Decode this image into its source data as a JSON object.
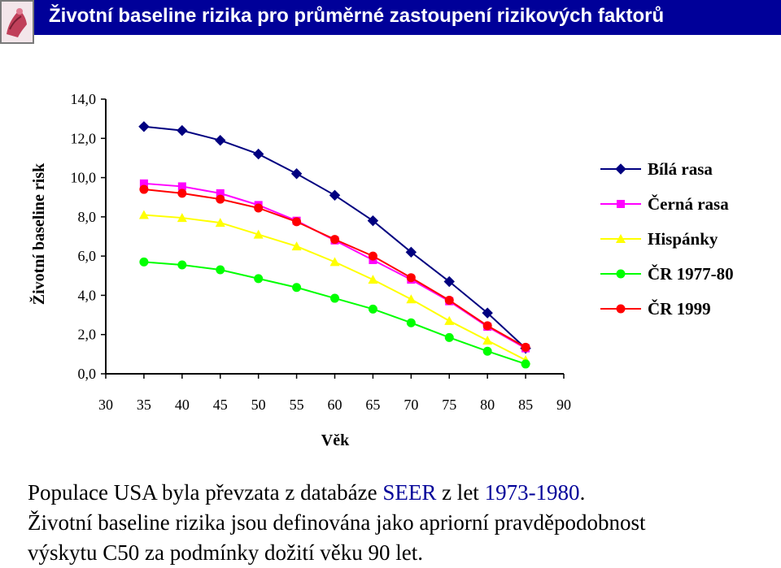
{
  "header": {
    "title": "Životní baseline rizika pro průměrné zastoupení rizikových faktorů"
  },
  "chart_data": {
    "type": "line",
    "xlabel": "Věk",
    "ylabel": "Životní baseline risk",
    "x_ticks": [
      "30",
      "35",
      "40",
      "45",
      "50",
      "55",
      "60",
      "65",
      "70",
      "75",
      "80",
      "85",
      "90"
    ],
    "y_ticks": [
      "0,0",
      "2,0",
      "4,0",
      "6,0",
      "8,0",
      "10,0",
      "12,0",
      "14,0"
    ],
    "xlim": [
      30,
      90
    ],
    "ylim": [
      0,
      14
    ],
    "grid": false,
    "legend_position": "right",
    "x": [
      35,
      40,
      45,
      50,
      55,
      60,
      65,
      70,
      75,
      80,
      85
    ],
    "series": [
      {
        "name": "Bílá rasa",
        "color": "#000080",
        "marker": "diamond",
        "values": [
          12.6,
          12.4,
          11.9,
          11.2,
          10.2,
          9.1,
          7.8,
          6.2,
          4.7,
          3.1,
          1.3
        ]
      },
      {
        "name": "Černá rasa",
        "color": "#ff00ff",
        "marker": "square",
        "values": [
          9.7,
          9.55,
          9.2,
          8.6,
          7.8,
          6.8,
          5.8,
          4.8,
          3.7,
          2.4,
          1.3
        ]
      },
      {
        "name": "Hispánky",
        "color": "#ffff00",
        "marker": "triangle",
        "values": [
          8.1,
          7.95,
          7.7,
          7.1,
          6.5,
          5.7,
          4.8,
          3.8,
          2.7,
          1.7,
          0.7
        ]
      },
      {
        "name": "ČR 1977-80",
        "color": "#00ff00",
        "marker": "circle",
        "values": [
          5.7,
          5.55,
          5.3,
          4.85,
          4.4,
          3.85,
          3.3,
          2.6,
          1.85,
          1.15,
          0.5
        ]
      },
      {
        "name": "ČR 1999",
        "color": "#ff0000",
        "marker": "circle",
        "values": [
          9.4,
          9.2,
          8.9,
          8.45,
          7.75,
          6.85,
          6.0,
          4.9,
          3.75,
          2.45,
          1.35
        ]
      }
    ]
  },
  "caption": {
    "line1_a": "Populace USA byla převzata z databáze ",
    "line1_b": "SEER",
    "line1_c": " z let ",
    "line1_d": "1973-1980",
    "line1_e": ".",
    "line2": "Životní baseline rizika jsou definována jako apriorní pravděpodobnost",
    "line3": "výskytu C50 za podmínky dožití věku 90 let."
  }
}
